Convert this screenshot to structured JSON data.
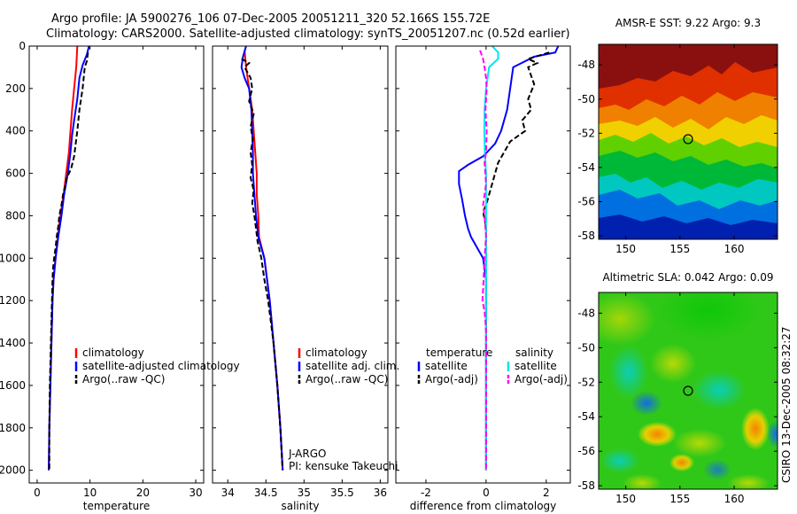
{
  "header": {
    "line1": "Argo profile: JA 5900276_106 07-Dec-2005 20051211_320 52.166S 155.72E",
    "line2": "Climatology: CARS2000. Satellite-adjusted climatology: synTS_20051207.nc (0.52d earlier)"
  },
  "colors": {
    "climatology": "#ff0000",
    "satellite": "#0000ff",
    "argo": "#000000",
    "sal_satellite": "#00e5ee",
    "sal_argo": "#ff00ff"
  },
  "credit": "CSIRO 13-Dec-2005 08:32:27",
  "chart_data": [
    {
      "id": "temperature",
      "type": "line",
      "xlabel": "temperature",
      "ylabel": "",
      "xlim": [
        -1.5,
        31.5
      ],
      "ylim": [
        2060,
        0
      ],
      "xticks": [
        0,
        10,
        20,
        30
      ],
      "yticks": [
        0,
        200,
        400,
        600,
        800,
        1000,
        1200,
        1400,
        1600,
        1800,
        2000
      ],
      "legend": {
        "location": "lower-right",
        "entries": [
          {
            "label": "climatology",
            "color": "#ff0000"
          },
          {
            "label": "satellite-adjusted climatology",
            "color": "#0000ff"
          },
          {
            "label": "Argo(..raw -QC)",
            "color": "#000000"
          }
        ]
      },
      "series": [
        {
          "name": "climatology",
          "color": "#ff0000",
          "dash": "",
          "points": [
            [
              7.6,
              0
            ],
            [
              7.4,
              100
            ],
            [
              7.0,
              200
            ],
            [
              6.6,
              300
            ],
            [
              6.3,
              400
            ],
            [
              6.0,
              500
            ],
            [
              5.5,
              600
            ],
            [
              5.0,
              700
            ],
            [
              4.4,
              800
            ],
            [
              3.9,
              900
            ],
            [
              3.5,
              1000
            ],
            [
              3.1,
              1100
            ],
            [
              2.9,
              1200
            ],
            [
              2.7,
              1400
            ],
            [
              2.5,
              1600
            ],
            [
              2.3,
              1800
            ],
            [
              2.2,
              2000
            ]
          ]
        },
        {
          "name": "satellite-adjusted climatology",
          "color": "#0000ff",
          "dash": "",
          "points": [
            [
              9.8,
              0
            ],
            [
              9.4,
              40
            ],
            [
              8.6,
              90
            ],
            [
              8.0,
              150
            ],
            [
              7.6,
              250
            ],
            [
              7.0,
              350
            ],
            [
              6.6,
              420
            ],
            [
              6.3,
              500
            ],
            [
              5.8,
              600
            ],
            [
              5.1,
              700
            ],
            [
              4.6,
              800
            ],
            [
              4.0,
              900
            ],
            [
              3.5,
              1000
            ],
            [
              3.1,
              1100
            ],
            [
              2.9,
              1200
            ],
            [
              2.7,
              1400
            ],
            [
              2.5,
              1600
            ],
            [
              2.3,
              1800
            ],
            [
              2.2,
              2000
            ]
          ]
        },
        {
          "name": "Argo(..raw -QC)",
          "color": "#000000",
          "dash": "6,3",
          "points": [
            [
              9.6,
              30
            ],
            [
              9.4,
              70
            ],
            [
              9.0,
              100
            ],
            [
              8.8,
              150
            ],
            [
              8.6,
              200
            ],
            [
              8.3,
              250
            ],
            [
              8.0,
              300
            ],
            [
              7.6,
              400
            ],
            [
              7.3,
              460
            ],
            [
              7.0,
              520
            ],
            [
              6.4,
              580
            ],
            [
              5.6,
              620
            ],
            [
              5.3,
              660
            ],
            [
              4.9,
              700
            ],
            [
              4.6,
              750
            ],
            [
              4.2,
              800
            ],
            [
              4.0,
              850
            ],
            [
              3.7,
              900
            ],
            [
              3.5,
              950
            ],
            [
              3.2,
              1000
            ],
            [
              3.0,
              1050
            ],
            [
              2.9,
              1100
            ],
            [
              2.8,
              1200
            ],
            [
              2.7,
              1300
            ],
            [
              2.6,
              1400
            ],
            [
              2.5,
              1500
            ],
            [
              2.4,
              1600
            ],
            [
              2.3,
              1800
            ],
            [
              2.3,
              2000
            ]
          ]
        }
      ]
    },
    {
      "id": "salinity",
      "type": "line",
      "xlabel": "salinity",
      "ylabel": "",
      "xlim": [
        33.8,
        36.1
      ],
      "ylim": [
        2060,
        0
      ],
      "xticks": [
        34,
        34.5,
        35,
        35.5,
        36
      ],
      "yticks": [
        0,
        200,
        400,
        600,
        800,
        1000,
        1200,
        1400,
        1600,
        1800,
        2000
      ],
      "legend": {
        "location": "lower-right",
        "entries": [
          {
            "label": "climatology",
            "color": "#ff0000"
          },
          {
            "label": "satellite adj. clim.",
            "color": "#0000ff"
          },
          {
            "label": "Argo(..raw -QC)",
            "color": "#000000"
          }
        ]
      },
      "annotation": [
        "J-ARGO",
        "PI: kensuke Takeuchi"
      ],
      "series": [
        {
          "name": "climatology",
          "color": "#ff0000",
          "dash": "",
          "points": [
            [
              34.22,
              20
            ],
            [
              34.24,
              100
            ],
            [
              34.28,
              200
            ],
            [
              34.32,
              300
            ],
            [
              34.34,
              400
            ],
            [
              34.36,
              500
            ],
            [
              34.38,
              600
            ],
            [
              34.38,
              700
            ],
            [
              34.4,
              800
            ],
            [
              34.41,
              900
            ],
            [
              34.48,
              1000
            ],
            [
              34.55,
              1200
            ],
            [
              34.6,
              1400
            ],
            [
              34.65,
              1600
            ],
            [
              34.69,
              1800
            ],
            [
              34.72,
              2000
            ]
          ]
        },
        {
          "name": "satellite adj. clim.",
          "color": "#0000ff",
          "dash": "",
          "points": [
            [
              34.24,
              0
            ],
            [
              34.2,
              50
            ],
            [
              34.18,
              100
            ],
            [
              34.22,
              150
            ],
            [
              34.28,
              200
            ],
            [
              34.31,
              300
            ],
            [
              34.32,
              400
            ],
            [
              34.33,
              500
            ],
            [
              34.33,
              600
            ],
            [
              34.35,
              700
            ],
            [
              34.37,
              800
            ],
            [
              34.4,
              900
            ],
            [
              34.48,
              1000
            ],
            [
              34.55,
              1200
            ],
            [
              34.6,
              1400
            ],
            [
              34.65,
              1600
            ],
            [
              34.69,
              1800
            ],
            [
              34.72,
              2000
            ]
          ]
        },
        {
          "name": "Argo(..raw -QC)",
          "color": "#000000",
          "dash": "6,3",
          "points": [
            [
              34.18,
              60
            ],
            [
              34.28,
              80
            ],
            [
              34.22,
              100
            ],
            [
              34.3,
              150
            ],
            [
              34.32,
              200
            ],
            [
              34.28,
              260
            ],
            [
              34.34,
              320
            ],
            [
              34.3,
              380
            ],
            [
              34.33,
              440
            ],
            [
              34.3,
              500
            ],
            [
              34.32,
              560
            ],
            [
              34.3,
              620
            ],
            [
              34.34,
              680
            ],
            [
              34.32,
              740
            ],
            [
              34.35,
              800
            ],
            [
              34.37,
              860
            ],
            [
              34.39,
              920
            ],
            [
              34.44,
              1000
            ],
            [
              34.48,
              1100
            ],
            [
              34.53,
              1200
            ],
            [
              34.6,
              1400
            ],
            [
              34.65,
              1600
            ],
            [
              34.69,
              1800
            ],
            [
              34.72,
              2000
            ]
          ]
        }
      ]
    },
    {
      "id": "difference",
      "type": "line",
      "xlabel": "difference from climatology",
      "ylabel": "",
      "xlim": [
        -3.0,
        2.8
      ],
      "ylim": [
        2060,
        0
      ],
      "xticks": [
        -2,
        0,
        2
      ],
      "yticks": [
        0,
        200,
        400,
        600,
        800,
        1000,
        1200,
        1400,
        1600,
        1800,
        2000
      ],
      "legend": {
        "location": "lower-center",
        "columns": [
          {
            "title": "temperature",
            "entries": [
              {
                "label": "satellite",
                "color": "#0000ff"
              },
              {
                "label": "Argo(-adj)",
                "color": "#000000"
              }
            ]
          },
          {
            "title": "salinity",
            "entries": [
              {
                "label": "satellite",
                "color": "#00e5ee"
              },
              {
                "label": "Argo(-adj)",
                "color": "#ff00ff"
              }
            ]
          }
        ]
      },
      "series": [
        {
          "name": "temperature satellite",
          "color": "#0000ff",
          "dash": "",
          "points": [
            [
              2.4,
              0
            ],
            [
              2.3,
              30
            ],
            [
              1.6,
              50
            ],
            [
              0.9,
              100
            ],
            [
              0.8,
              200
            ],
            [
              0.7,
              300
            ],
            [
              0.5,
              400
            ],
            [
              0.3,
              460
            ],
            [
              -0.1,
              520
            ],
            [
              -0.6,
              560
            ],
            [
              -0.9,
              590
            ],
            [
              -0.9,
              650
            ],
            [
              -0.8,
              720
            ],
            [
              -0.7,
              800
            ],
            [
              -0.6,
              860
            ],
            [
              -0.5,
              900
            ],
            [
              -0.3,
              950
            ],
            [
              -0.1,
              1000
            ],
            [
              0.0,
              1100
            ],
            [
              0.0,
              2000
            ]
          ]
        },
        {
          "name": "temperature Argo(-adj)",
          "color": "#000000",
          "dash": "6,3",
          "points": [
            [
              2.1,
              30
            ],
            [
              1.4,
              60
            ],
            [
              1.7,
              80
            ],
            [
              1.4,
              100
            ],
            [
              1.6,
              180
            ],
            [
              1.4,
              250
            ],
            [
              1.5,
              300
            ],
            [
              1.2,
              350
            ],
            [
              1.3,
              400
            ],
            [
              0.8,
              450
            ],
            [
              0.6,
              500
            ],
            [
              0.4,
              550
            ],
            [
              0.3,
              600
            ],
            [
              0.2,
              650
            ],
            [
              0.1,
              700
            ],
            [
              0.0,
              750
            ],
            [
              -0.1,
              780
            ],
            [
              0.0,
              850
            ],
            [
              0.0,
              1000
            ],
            [
              0.0,
              2000
            ]
          ]
        },
        {
          "name": "salinity satellite",
          "color": "#00e5ee",
          "dash": "",
          "points": [
            [
              0.2,
              0
            ],
            [
              0.4,
              30
            ],
            [
              0.4,
              60
            ],
            [
              0.1,
              100
            ],
            [
              0.0,
              200
            ],
            [
              -0.05,
              300
            ],
            [
              -0.06,
              400
            ],
            [
              -0.04,
              500
            ],
            [
              0.0,
              600
            ],
            [
              0.0,
              800
            ],
            [
              0.0,
              1200
            ],
            [
              0.0,
              2000
            ]
          ]
        },
        {
          "name": "salinity Argo(-adj)",
          "color": "#ff00ff",
          "dash": "6,3",
          "points": [
            [
              -0.2,
              20
            ],
            [
              -0.1,
              60
            ],
            [
              -0.05,
              100
            ],
            [
              0.0,
              150
            ],
            [
              0.02,
              200
            ],
            [
              -0.02,
              300
            ],
            [
              0.02,
              400
            ],
            [
              0.0,
              500
            ],
            [
              -0.05,
              550
            ],
            [
              0.0,
              650
            ],
            [
              -0.1,
              750
            ],
            [
              -0.05,
              800
            ],
            [
              0.0,
              900
            ],
            [
              -0.05,
              1000
            ],
            [
              -0.1,
              1150
            ],
            [
              -0.12,
              1200
            ],
            [
              -0.05,
              1250
            ],
            [
              -0.02,
              1300
            ],
            [
              0.0,
              1350
            ],
            [
              0.0,
              2000
            ]
          ]
        }
      ]
    },
    {
      "id": "sst-map",
      "type": "heatmap",
      "title": "AMSR-E SST: 9.22 Argo: 9.3",
      "xlim": [
        147.5,
        164
      ],
      "ylim": [
        -58.2,
        -46.8
      ],
      "xticks": [
        150,
        155,
        160
      ],
      "yticks": [
        -48,
        -50,
        -52,
        -54,
        -56,
        -58
      ],
      "marker": {
        "lon": 155.72,
        "lat": -52.166
      }
    },
    {
      "id": "sla-map",
      "type": "heatmap",
      "title": "Altimetric SLA: 0.042 Argo: 0.09",
      "xlim": [
        147.5,
        164
      ],
      "ylim": [
        -58.2,
        -46.8
      ],
      "xticks": [
        150,
        155,
        160
      ],
      "yticks": [
        -48,
        -50,
        -52,
        -54,
        -56,
        -58
      ],
      "marker": {
        "lon": 155.72,
        "lat": -52.166
      }
    }
  ]
}
